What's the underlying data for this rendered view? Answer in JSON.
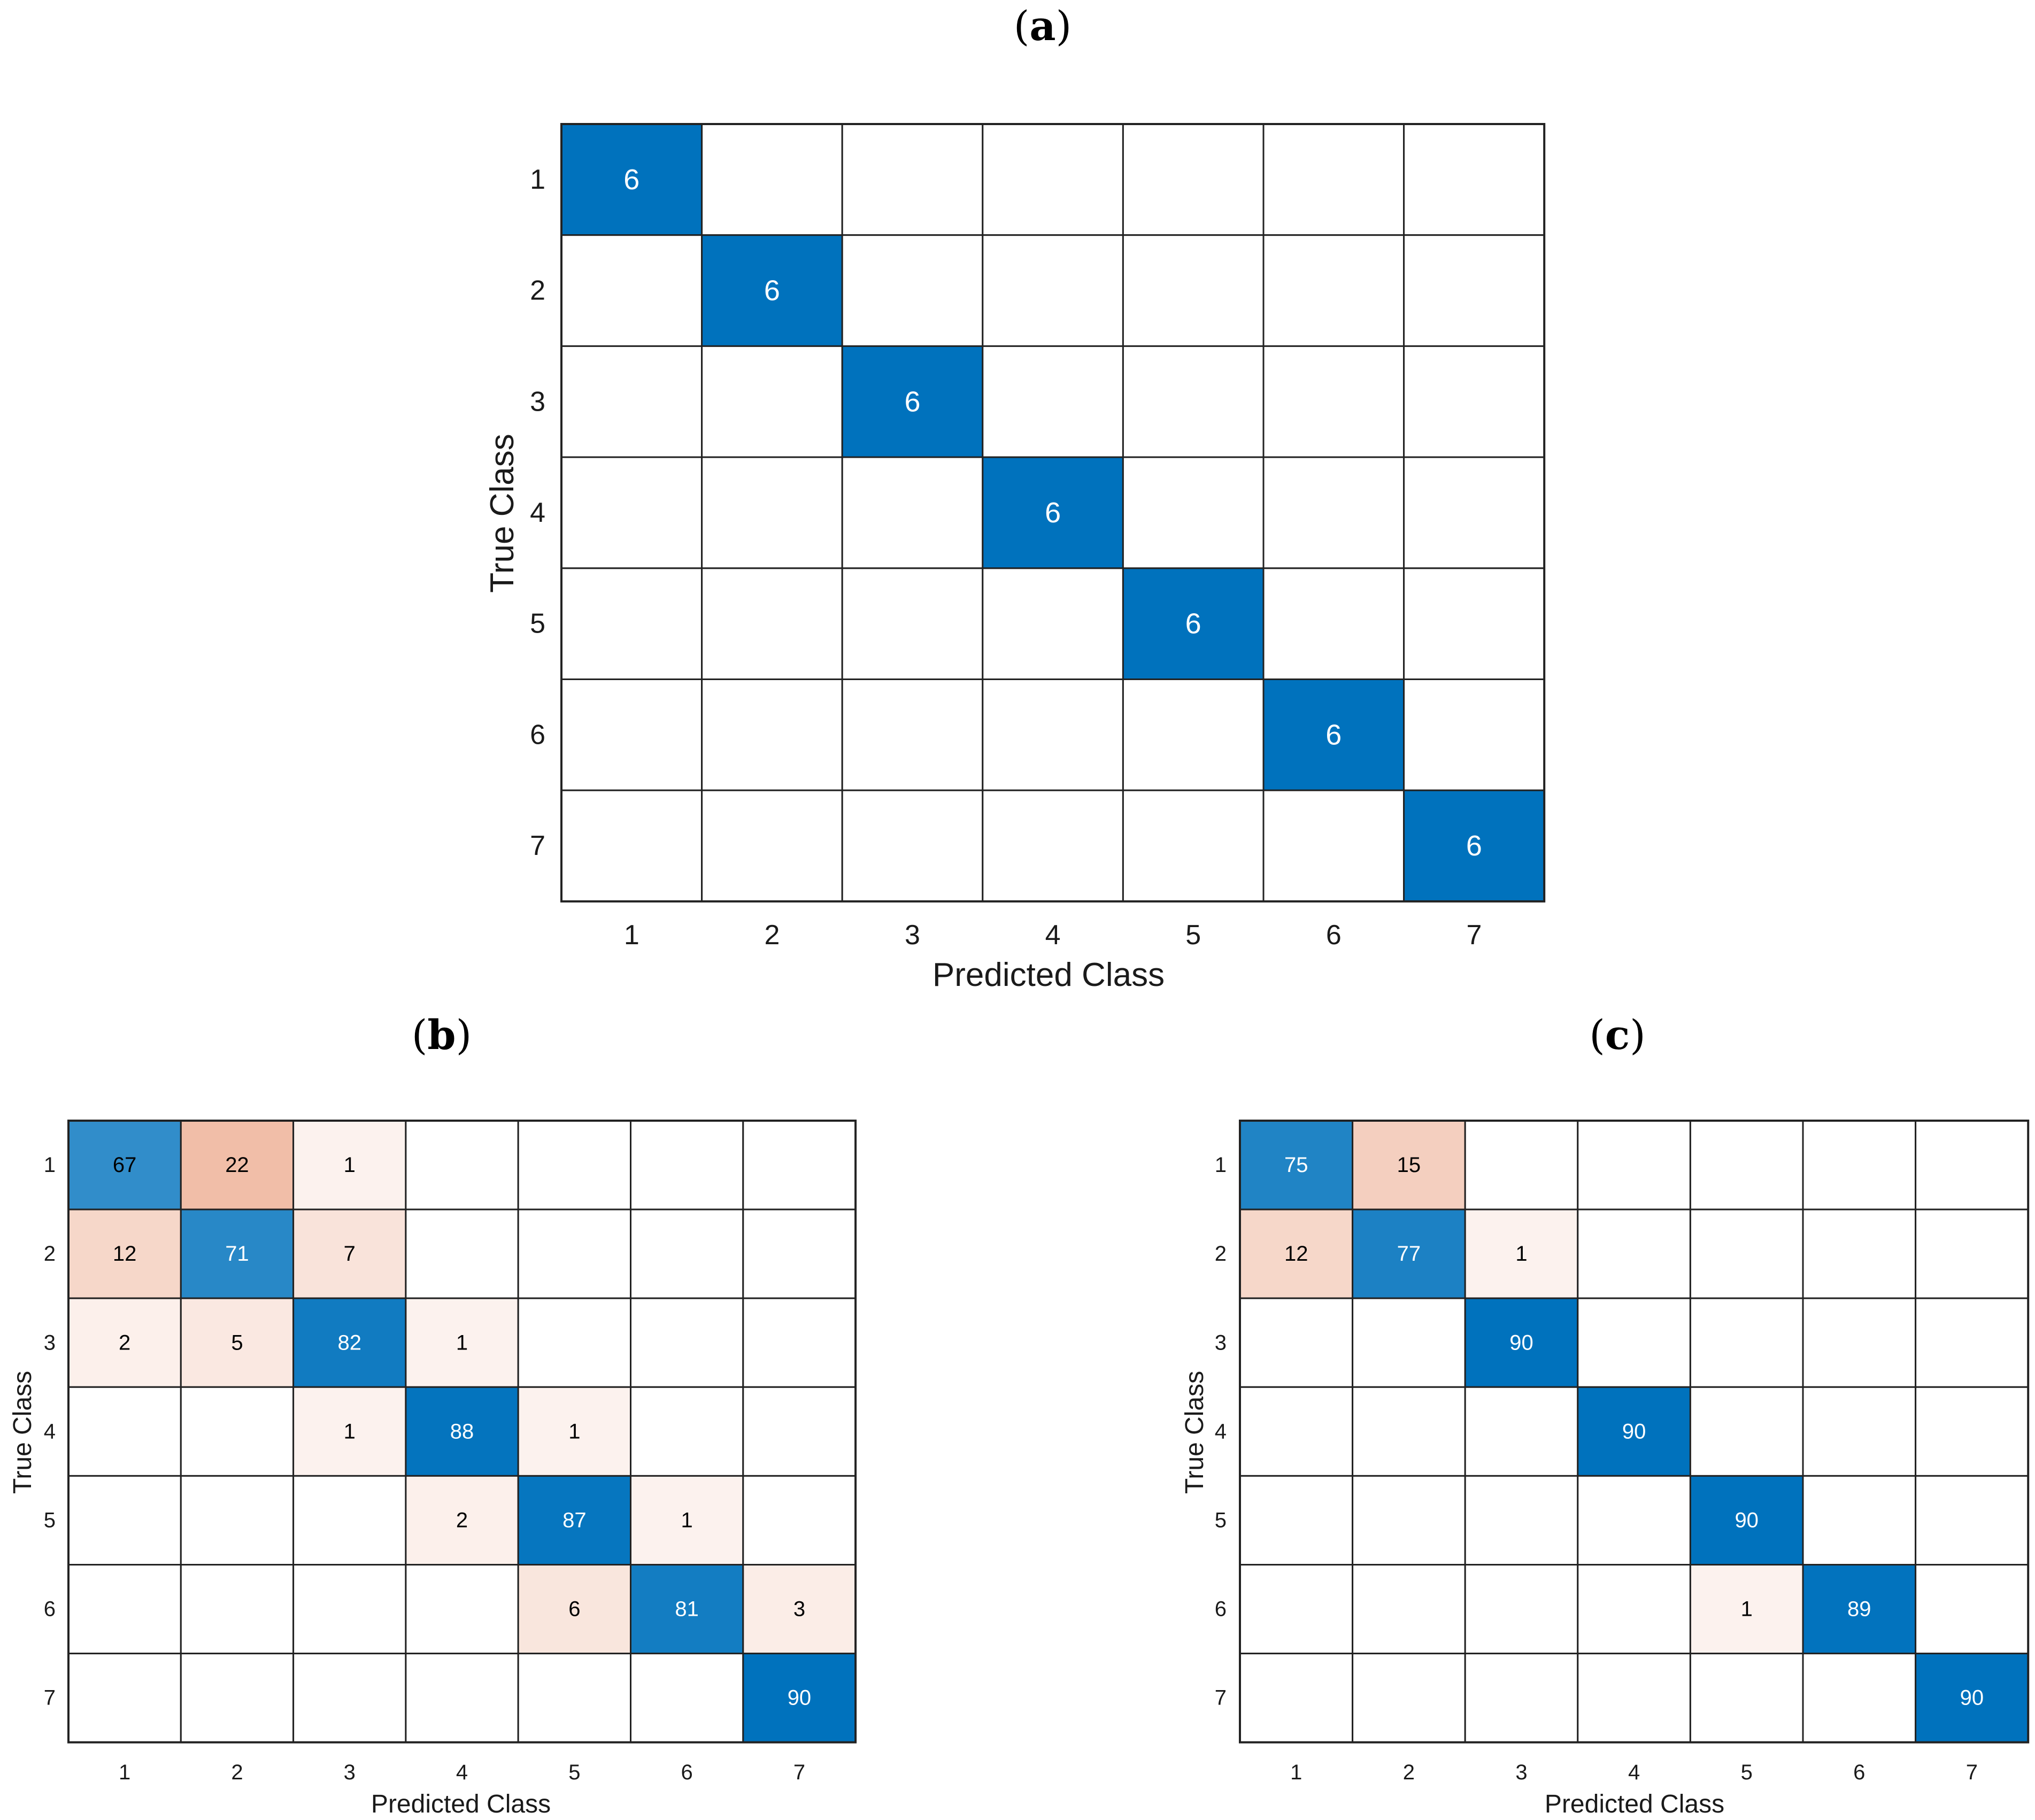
{
  "chart_data": [
    {
      "type": "heatmap",
      "panel_label": "a",
      "xlabel": "Predicted Class",
      "ylabel": "True Class",
      "categories": [
        "1",
        "2",
        "3",
        "4",
        "5",
        "6",
        "7"
      ],
      "matrix": [
        [
          6,
          0,
          0,
          0,
          0,
          0,
          0
        ],
        [
          0,
          6,
          0,
          0,
          0,
          0,
          0
        ],
        [
          0,
          0,
          6,
          0,
          0,
          0,
          0
        ],
        [
          0,
          0,
          0,
          6,
          0,
          0,
          0
        ],
        [
          0,
          0,
          0,
          0,
          6,
          0,
          0
        ],
        [
          0,
          0,
          0,
          0,
          0,
          6,
          0
        ],
        [
          0,
          0,
          0,
          0,
          0,
          0,
          6
        ]
      ],
      "max_value": 6,
      "grid": true
    },
    {
      "type": "heatmap",
      "panel_label": "b",
      "xlabel": "Predicted Class",
      "ylabel": "True Class",
      "categories": [
        "1",
        "2",
        "3",
        "4",
        "5",
        "6",
        "7"
      ],
      "matrix": [
        [
          67,
          22,
          1,
          0,
          0,
          0,
          0
        ],
        [
          12,
          71,
          7,
          0,
          0,
          0,
          0
        ],
        [
          2,
          5,
          82,
          1,
          0,
          0,
          0
        ],
        [
          0,
          0,
          1,
          88,
          1,
          0,
          0
        ],
        [
          0,
          0,
          0,
          2,
          87,
          1,
          0
        ],
        [
          0,
          0,
          0,
          0,
          6,
          81,
          3
        ],
        [
          0,
          0,
          0,
          0,
          0,
          0,
          90
        ]
      ],
      "max_value": 90,
      "grid": true
    },
    {
      "type": "heatmap",
      "panel_label": "c",
      "xlabel": "Predicted Class",
      "ylabel": "True Class",
      "categories": [
        "1",
        "2",
        "3",
        "4",
        "5",
        "6",
        "7"
      ],
      "matrix": [
        [
          75,
          15,
          0,
          0,
          0,
          0,
          0
        ],
        [
          12,
          77,
          1,
          0,
          0,
          0,
          0
        ],
        [
          0,
          0,
          90,
          0,
          0,
          0,
          0
        ],
        [
          0,
          0,
          0,
          90,
          0,
          0,
          0
        ],
        [
          0,
          0,
          0,
          0,
          90,
          0,
          0
        ],
        [
          0,
          0,
          0,
          0,
          1,
          89,
          0
        ],
        [
          0,
          0,
          0,
          0,
          0,
          0,
          90
        ]
      ],
      "max_value": 90,
      "grid": true
    }
  ],
  "colors": {
    "diagonal_full": "#0072BD",
    "diagonal_light": "#FFFFFF",
    "offdiag_full": "#D95319",
    "offdiag_light": "#FFFFFF",
    "grid_line": "#222222",
    "text_dark": "#000000",
    "text_light": "#FFFFFF"
  }
}
